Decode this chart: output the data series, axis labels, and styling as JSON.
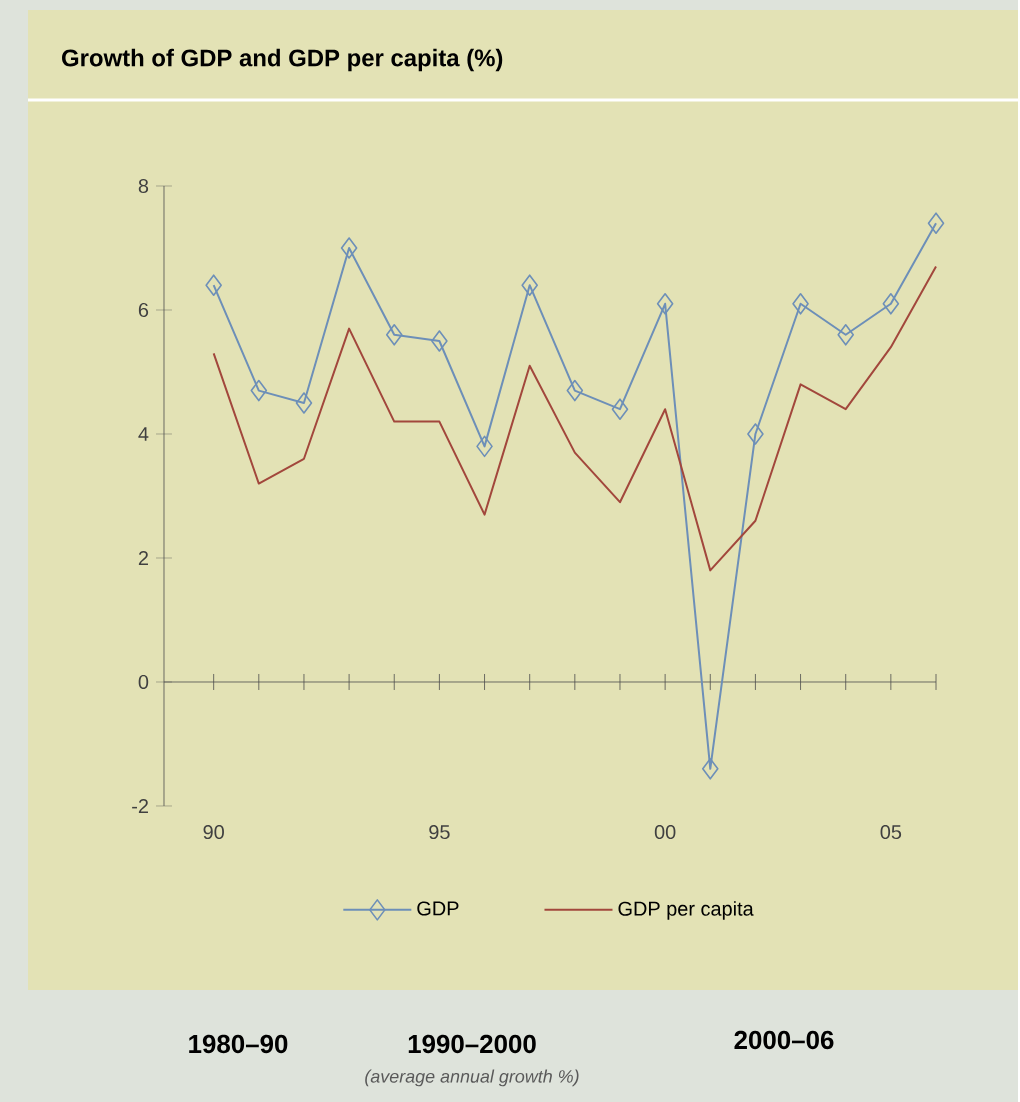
{
  "chart_data": {
    "type": "line",
    "title": "Growth of GDP and GDP per capita (%)",
    "x": [
      1990,
      1991,
      1992,
      1993,
      1994,
      1995,
      1996,
      1997,
      1998,
      1999,
      2000,
      2001,
      2002,
      2003,
      2004,
      2005,
      2006
    ],
    "series": [
      {
        "name": "GDP",
        "color": "#6d8fb8",
        "marker": "diamond",
        "values": [
          6.4,
          4.7,
          4.5,
          7.0,
          5.6,
          5.5,
          3.8,
          6.4,
          4.7,
          4.4,
          6.1,
          -1.4,
          4.0,
          6.1,
          5.6,
          6.1,
          7.4
        ]
      },
      {
        "name": "GDP per capita",
        "color": "#a2473c",
        "marker": "none",
        "values": [
          5.3,
          3.2,
          3.6,
          5.7,
          4.2,
          4.2,
          2.7,
          5.1,
          3.7,
          2.9,
          4.4,
          1.8,
          2.6,
          4.8,
          4.4,
          5.4,
          6.7
        ]
      }
    ],
    "xlim": [
      1988.9,
      2006
    ],
    "xticks": [
      {
        "value": 1990,
        "label": "90"
      },
      {
        "value": 1991,
        "label": null
      },
      {
        "value": 1992,
        "label": null
      },
      {
        "value": 1993,
        "label": null
      },
      {
        "value": 1994,
        "label": null
      },
      {
        "value": 1995,
        "label": "95"
      },
      {
        "value": 1996,
        "label": null
      },
      {
        "value": 1997,
        "label": null
      },
      {
        "value": 1998,
        "label": null
      },
      {
        "value": 1999,
        "label": null
      },
      {
        "value": 2000,
        "label": "00"
      },
      {
        "value": 2001,
        "label": null
      },
      {
        "value": 2002,
        "label": null
      },
      {
        "value": 2003,
        "label": null
      },
      {
        "value": 2004,
        "label": null
      },
      {
        "value": 2005,
        "label": "05"
      },
      {
        "value": 2006,
        "label": null
      }
    ],
    "ylim": [
      -2,
      8
    ],
    "yticks": [
      -2,
      0,
      2,
      4,
      6,
      8
    ],
    "legend": "bottom",
    "annotations": [
      "1980–90",
      "1990–2000",
      "2000–06",
      "(average annual growth %)"
    ]
  }
}
